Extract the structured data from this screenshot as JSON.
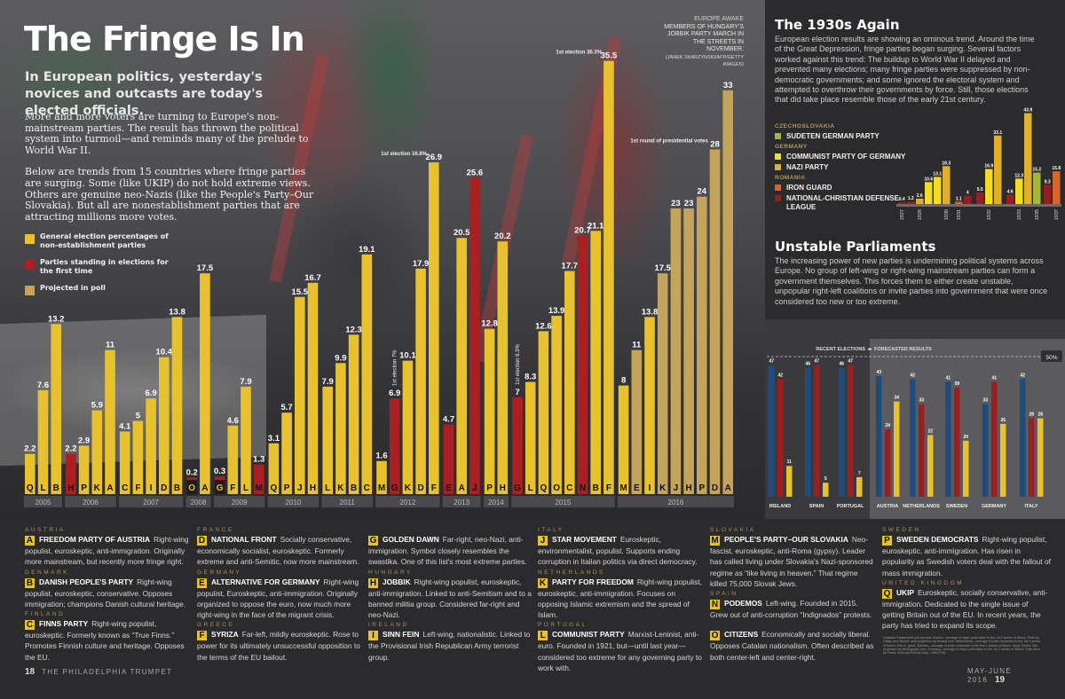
{
  "header": {
    "title": "The Fringe Is In",
    "subtitle": "In European politics, yesterday's novices and outcasts are today's elected officials.",
    "intro_p1": "More and more voters are turning to Europe's non-mainstream parties. The result has thrown the political system into turmoil—and reminds many of the prelude to World War II.",
    "intro_p2": "Below are trends from 15 countries where fringe parties are surging. Some (like UKIP) do not hold extreme views. Others are genuine neo-Nazis (like the People's Party–Our Slovakia). But all are nonestablishment parties that are attracting millions more votes."
  },
  "photo_caption": {
    "heading": "EUROPE AWAKE",
    "text": "MEMBERS OF HUNGARY'S JOBBIK PARTY MARCH IN THE STREETS IN NOVEMBER.",
    "credit": "(JANEK SKARZYNSKI/AFP/GETTY IMAGES)"
  },
  "legend": [
    {
      "label": "General election percentages of non-establishment parties",
      "color": "#e7c22e"
    },
    {
      "label": "Parties standing in elections for the first time",
      "color": "#a91f22"
    },
    {
      "label": "Projected in poll",
      "color": "#c4a35a"
    }
  ],
  "colors": {
    "general": "#e7c22e",
    "first_time": "#a91f22",
    "projected": "#c4a35a",
    "left": "#1f4b82",
    "right": "#9c1d22",
    "fringe": "#e7c22e"
  },
  "chart_data": [
    {
      "type": "bar",
      "title": "The Fringe Is In",
      "xlabel": "",
      "ylabel": "Vote share (%)",
      "ylim": [
        0,
        36
      ],
      "legend_position": "top-left",
      "years": [
        {
          "year": "2005",
          "bars": [
            {
              "p": "Q",
              "v": 2.2,
              "t": "general"
            },
            {
              "p": "L",
              "v": 7.6,
              "t": "general"
            },
            {
              "p": "B",
              "v": 13.2,
              "t": "general"
            }
          ]
        },
        {
          "year": "2006",
          "bars": [
            {
              "p": "H",
              "v": 2.2,
              "t": "first_time"
            },
            {
              "p": "P",
              "v": 2.9,
              "t": "general"
            },
            {
              "p": "K",
              "v": 5.9,
              "t": "general"
            },
            {
              "p": "A",
              "v": 11,
              "t": "general"
            }
          ]
        },
        {
          "year": "2007",
          "bars": [
            {
              "p": "C",
              "v": 4.1,
              "t": "general"
            },
            {
              "p": "F",
              "v": 5,
              "t": "general"
            },
            {
              "p": "I",
              "v": 6.9,
              "t": "general"
            },
            {
              "p": "D",
              "v": 10.4,
              "t": "general"
            },
            {
              "p": "B",
              "v": 13.8,
              "t": "general"
            }
          ]
        },
        {
          "year": "2008",
          "bars": [
            {
              "p": "O",
              "v": 0.2,
              "t": "first_time"
            },
            {
              "p": "A",
              "v": 17.5,
              "t": "general"
            }
          ]
        },
        {
          "year": "2009",
          "bars": [
            {
              "p": "G",
              "v": 0.3,
              "t": "first_time"
            },
            {
              "p": "F",
              "v": 4.6,
              "t": "general"
            },
            {
              "p": "L",
              "v": 7.9,
              "t": "general"
            },
            {
              "p": "M",
              "v": 1.3,
              "t": "first_time"
            }
          ]
        },
        {
          "year": "2010",
          "bars": [
            {
              "p": "Q",
              "v": 3.1,
              "t": "general"
            },
            {
              "p": "P",
              "v": 5.7,
              "t": "general"
            },
            {
              "p": "J",
              "v": 15.5,
              "t": "general"
            },
            {
              "p": "H",
              "v": 16.7,
              "t": "general"
            }
          ]
        },
        {
          "year": "2011",
          "bars": [
            {
              "p": "L",
              "v": 7.9,
              "t": "general"
            },
            {
              "p": "K",
              "v": 9.9,
              "t": "general"
            },
            {
              "p": "B",
              "v": 12.3,
              "t": "general"
            },
            {
              "p": "C",
              "v": 19.1,
              "t": "general"
            }
          ]
        },
        {
          "year": "2012",
          "bars": [
            {
              "p": "M",
              "v": 1.6,
              "t": "general"
            },
            {
              "p": "G",
              "v": 6.9,
              "t": "first_time",
              "note": "1st election 7%"
            },
            {
              "p": "K",
              "v": 10.1,
              "t": "general"
            },
            {
              "p": "D",
              "v": 17.9,
              "t": "general"
            },
            {
              "p": "F",
              "v": 26.9,
              "t": "general",
              "note": "1st election 16.8%"
            }
          ]
        },
        {
          "year": "2013",
          "bars": [
            {
              "p": "E",
              "v": 4.7,
              "t": "first_time"
            },
            {
              "p": "A",
              "v": 20.5,
              "t": "general"
            },
            {
              "p": "J",
              "v": 25.6,
              "t": "first_time"
            }
          ]
        },
        {
          "year": "2014",
          "bars": [
            {
              "p": "P",
              "v": 12.8,
              "t": "general"
            },
            {
              "p": "H",
              "v": 20.2,
              "t": "general"
            }
          ]
        },
        {
          "year": "2015",
          "bars": [
            {
              "p": "G",
              "v": 7,
              "t": "first_time",
              "note": "1st election 6.3%"
            },
            {
              "p": "L",
              "v": 8.3,
              "t": "general"
            },
            {
              "p": "Q",
              "v": 12.6,
              "t": "general"
            },
            {
              "p": "O",
              "v": 13.9,
              "t": "general"
            },
            {
              "p": "C",
              "v": 17.7,
              "t": "general"
            },
            {
              "p": "N",
              "v": 20.7,
              "t": "first_time"
            },
            {
              "p": "B",
              "v": 21.1,
              "t": "general"
            },
            {
              "p": "F",
              "v": 35.5,
              "t": "general",
              "note": "1st election 36.3%"
            }
          ]
        },
        {
          "year": "2016",
          "bars": [
            {
              "p": "M",
              "v": 8,
              "t": "general"
            },
            {
              "p": "E",
              "v": 11,
              "t": "projected"
            },
            {
              "p": "I",
              "v": 13.8,
              "t": "general"
            },
            {
              "p": "K",
              "v": 17.5,
              "t": "projected"
            },
            {
              "p": "J",
              "v": 23,
              "t": "projected"
            },
            {
              "p": "H",
              "v": 23,
              "t": "projected"
            },
            {
              "p": "P",
              "v": 24,
              "t": "projected"
            },
            {
              "p": "D",
              "v": 28,
              "t": "projected",
              "note": "1st round of presidential votes"
            },
            {
              "p": "A",
              "v": 33,
              "t": "projected"
            }
          ]
        }
      ]
    },
    {
      "type": "bar",
      "title": "The 1930s Again",
      "ylim": [
        0,
        45
      ],
      "legend_position": "left",
      "bars": [
        {
          "x": "1927",
          "v": 0.4,
          "party": "National-Christian Defense League",
          "colorKey": "ncdl"
        },
        {
          "x": "1928",
          "v": 1.2,
          "party": "National-Christian Defense League",
          "colorKey": "ncdl"
        },
        {
          "x": "1928",
          "v": 2.6,
          "party": "Nazi Party",
          "colorKey": "nazi"
        },
        {
          "x": "1928",
          "v": 10.6,
          "party": "Communist Party of Germany",
          "colorKey": "kpd"
        },
        {
          "x": "1930",
          "v": 13.1,
          "party": "Communist Party of Germany",
          "colorKey": "kpd"
        },
        {
          "x": "1930",
          "v": 18.3,
          "party": "Nazi Party",
          "colorKey": "nazi"
        },
        {
          "x": "1931",
          "v": 1.1,
          "party": "Iron Guard",
          "colorKey": "iron"
        },
        {
          "x": "1931",
          "v": 4.0,
          "party": "National-Christian Defense League",
          "colorKey": "ncdl"
        },
        {
          "x": "1932",
          "v": 5.5,
          "party": "National-Christian Defense League",
          "colorKey": "ncdl"
        },
        {
          "x": "1932",
          "v": 16.9,
          "party": "Communist Party of Germany",
          "colorKey": "kpd"
        },
        {
          "x": "1932",
          "v": 33.1,
          "party": "Nazi Party",
          "colorKey": "nazi"
        },
        {
          "x": "1933",
          "v": 4.6,
          "party": "National-Christian Defense League",
          "colorKey": "ncdl"
        },
        {
          "x": "1933",
          "v": 12.3,
          "party": "Communist Party of Germany",
          "colorKey": "kpd"
        },
        {
          "x": "1933",
          "v": 43.9,
          "party": "Nazi Party",
          "colorKey": "nazi"
        },
        {
          "x": "1935",
          "v": 15.2,
          "party": "Sudeten German Party",
          "colorKey": "sdp"
        },
        {
          "x": "1937",
          "v": 9.3,
          "party": "National-Christian Defense League",
          "colorKey": "ncdl"
        },
        {
          "x": "1937",
          "v": 15.8,
          "party": "Iron Guard",
          "colorKey": "iron"
        }
      ],
      "x_ticks": [
        "1927",
        "1928",
        "1930",
        "1931",
        "1932",
        "1933",
        "1935",
        "1937"
      ]
    },
    {
      "type": "bar",
      "title": "Unstable Parliaments",
      "ylim": [
        0,
        50
      ],
      "reference_line": {
        "value": 50,
        "label": "50%"
      },
      "section_labels": {
        "left": "RECENT ELECTIONS",
        "right": "FORECASTED RESULTS"
      },
      "series": [
        {
          "name": "Left-wing votes",
          "colorKey": "left",
          "values": [
            47,
            46,
            46,
            43,
            42,
            41,
            33,
            42
          ]
        },
        {
          "name": "Right-wing votes",
          "colorKey": "right",
          "values": [
            42,
            47,
            47,
            24,
            33,
            39,
            41,
            28
          ]
        },
        {
          "name": "Fringe party votes",
          "colorKey": "fringe",
          "values": [
            11,
            5,
            7,
            34,
            22,
            20,
            26,
            28
          ]
        }
      ],
      "categories": [
        "IRELAND",
        "SPAIN",
        "PORTUGAL",
        "AUSTRIA",
        "NETHERLANDS",
        "SWEDEN",
        "GERMANY",
        "ITALY"
      ],
      "recent_count": 3
    }
  ],
  "c30_colors": {
    "sdp": "#a3b83a",
    "kpd": "#f2dc28",
    "nazi": "#e0b02c",
    "iron": "#d9652a",
    "ncdl": "#961e22"
  },
  "thirties": {
    "title": "The 1930s Again",
    "text": "European election results are showing an ominous trend. Around the time of the Great Depression, fringe parties began surging. Several factors worked against this trend: The buildup to World War II delayed and prevented many elections; many fringe parties were suppressed by non-democratic governments; and some ignored the electoral system and attempted to overthrow their governments by force. Still, those elections that did take place resemble those of the early 21st century.",
    "legend": [
      {
        "group": "CZECHOSLOVAKIA",
        "items": [
          {
            "label": "SUDETEN GERMAN PARTY",
            "color": "#a3b83a"
          }
        ]
      },
      {
        "group": "GERMANY",
        "items": [
          {
            "label": "COMMUNIST PARTY OF GERMANY",
            "color": "#f2dc28"
          },
          {
            "label": "NAZI PARTY",
            "color": "#e0b02c"
          }
        ]
      },
      {
        "group": "ROMANIA",
        "items": [
          {
            "label": "IRON GUARD",
            "color": "#d9652a"
          },
          {
            "label": "NATIONAL-CHRISTIAN DEFENSE LEAGUE",
            "color": "#961e22"
          }
        ]
      }
    ]
  },
  "parliaments": {
    "title": "Unstable Parliaments",
    "text": "The increasing power of new parties is undermining political systems across Europe. No group of left-wing or right-wing mainstream parties can form a government themselves. This forces them to either create unstable, unpopular right-left coalitions or invite parties into government that were once considered too new or too extreme.",
    "legend": [
      {
        "label": "Left-wing votes",
        "color": "#1f4b82",
        "shape": "dot"
      },
      {
        "label": "Right-wing votes",
        "color": "#9c1d22",
        "shape": "dot"
      },
      {
        "label": "Fringe party votes",
        "color": "#e7c22e",
        "shape": "square"
      }
    ]
  },
  "parties": {
    "columns": [
      [
        {
          "country": "AUSTRIA",
          "letter": "A",
          "name": "FREEDOM PARTY OF AUSTRIA",
          "desc": "Right-wing populist, euroskeptic, anti-immigration. Originally more mainstream, but recently more fringe right."
        },
        {
          "country": "DENMARK",
          "letter": "B",
          "name": "DANISH PEOPLE'S PARTY",
          "desc": "Right-wing populist, euroskeptic, conservative. Opposes immigration; champions Danish cultural heritage."
        },
        {
          "country": "FINLAND",
          "letter": "C",
          "name": "FINNS PARTY",
          "desc": "Right-wing populist, euroskeptic. Formerly known as “True Finns.” Promotes Finnish culture and heritage. Opposes the EU."
        }
      ],
      [
        {
          "country": "FRANCE",
          "letter": "D",
          "name": "NATIONAL FRONT",
          "desc": "Socially conservative, economically socialist, euroskeptic. Formerly extreme and anti-Semitic, now more mainstream."
        },
        {
          "country": "GERMANY",
          "letter": "E",
          "name": "ALTERNATIVE FOR GERMANY",
          "desc": "Right-wing populist, Euroskeptic, anti-immigration. Originally organized to oppose the euro, now much more right-wing in the face of the migrant crisis."
        },
        {
          "country": "GREECE",
          "letter": "F",
          "name": "SYRIZA",
          "desc": "Far-left, mildly euroskeptic. Rose to power for its ultimately unsuccessful opposition to the terms of the EU bailout."
        }
      ],
      [
        {
          "country": "",
          "letter": "G",
          "name": "GOLDEN DAWN",
          "desc": "Far-right, neo-Nazi, anti-immigration. Symbol closely resembles the swastika. One of this list's most extreme parties."
        },
        {
          "country": "HUNGARY",
          "letter": "H",
          "name": "JOBBIK",
          "desc": "Right-wing populist, euroskeptic, anti-immigration. Linked to anti-Semitism and to a banned militia group. Considered far-right and neo-Nazi."
        },
        {
          "country": "IRELAND",
          "letter": "I",
          "name": "SINN FEIN",
          "desc": "Left-wing, nationalistic. Linked to the Provisional Irish Republican Army terrorist group."
        }
      ],
      [
        {
          "country": "ITALY",
          "letter": "J",
          "name": "STAR MOVEMENT",
          "desc": "Euroskeptic, environmentalist, populist. Supports ending corruption in Italian politics via direct democracy."
        },
        {
          "country": "NETHERLANDS",
          "letter": "K",
          "name": "PARTY FOR FREEDOM",
          "desc": "Right-wing populist, euroskeptic, anti-immigration. Focuses on opposing Islamic extremism and the spread of Islam."
        },
        {
          "country": "PORTUGAL",
          "letter": "L",
          "name": "COMMUNIST PARTY",
          "desc": "Marxist-Leninist, anti-euro. Founded in 1921, but—until last year—considered too extreme for any governing party to work with."
        }
      ],
      [
        {
          "country": "SLOVAKIA",
          "letter": "M",
          "name": "PEOPLE'S PARTY–OUR SLOVAKIA",
          "desc": "Neo-fascist, euroskeptic, anti-Roma (gypsy). Leader has called living under Slovakia's Nazi-sponsored regime as “like living in heaven.” That regime killed 75,000 Slovak Jews."
        },
        {
          "country": "SPAIN",
          "letter": "N",
          "name": "PODEMOS",
          "desc": "Left-wing. Founded in 2015. Grew out of anti-corruption “Indignados” protests."
        },
        {
          "country": "",
          "letter": "O",
          "name": "CITIZENS",
          "desc": "Economically and socially liberal. Opposes Catalan nationalism. Often described as both center-left and center-right."
        }
      ],
      [
        {
          "country": "SWEDEN",
          "letter": "P",
          "name": "SWEDEN DEMOCRATS",
          "desc": "Right-wing populist, euroskeptic, anti-immigration. Has risen in popularity as Swedish voters deal with the fallout of mass immigration."
        },
        {
          "country": "UNITED KINGDOM",
          "letter": "Q",
          "name": "UKIP",
          "desc": "Euroskeptic, socially conservative, anti-immigration. Dedicated to the single issue of getting Britain out of the EU. In recent years, the party has tried to expand its scope."
        }
      ]
    ]
  },
  "footnote": "Unstable Parliaments poll sources: Austria—average of major polls taken in the 1st 2 weeks of March. Polls by Gallup and Market, seat projection by neuwal.com; Netherlands—average of polls conducted in the 1st 2 weeks of March, Peil.nl, Ipsos; Sweden—average of polls conducted in the first 2 weeks of March, Skop, Sentio; Site projection by electograph.com; Germany—average of major polls taken in the 1st 2 weeks of March. Polls done by Forsa, INSA and Emnid; Italy—SWG Poll",
  "folio": {
    "left_page": "18",
    "left_pub": "THE PHILADELPHIA TRUMPET",
    "right_issue": "MAY-JUNE 2016",
    "right_page": "19"
  }
}
